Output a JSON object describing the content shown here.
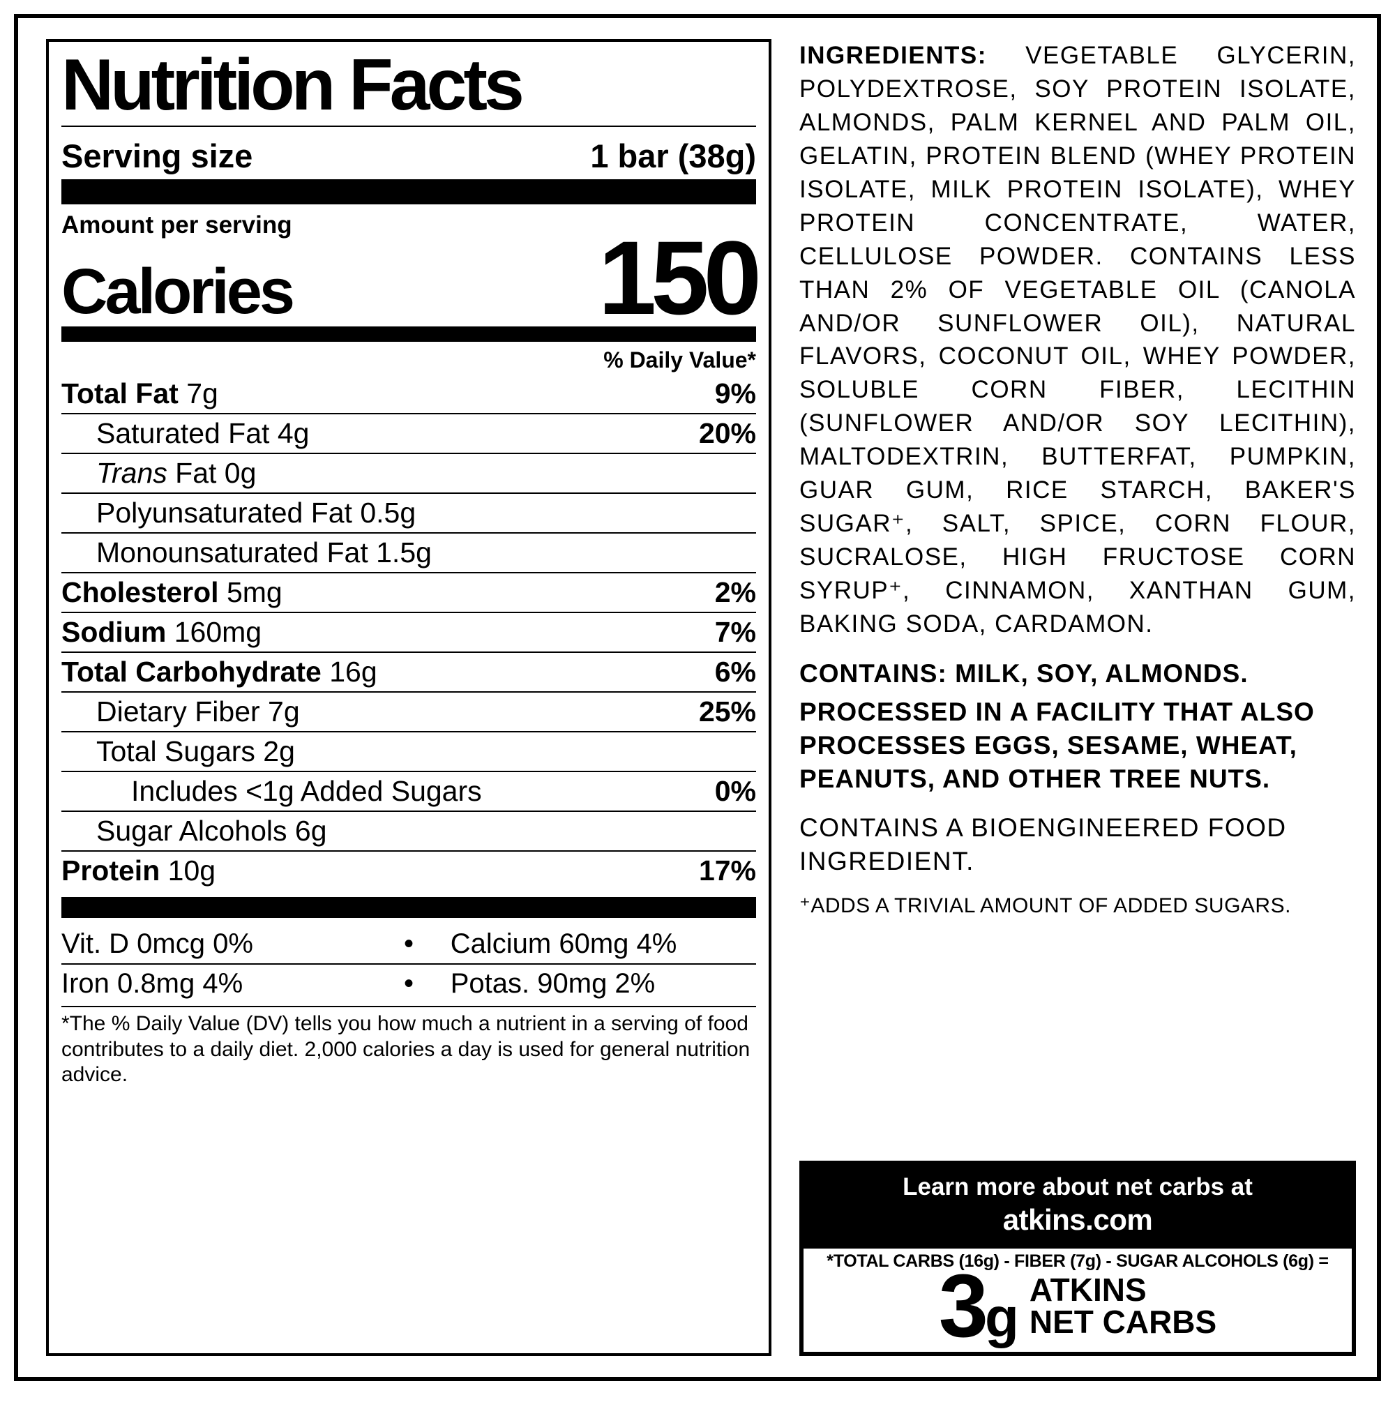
{
  "nf": {
    "title": "Nutrition Facts",
    "serving_label": "Serving size",
    "serving_value": "1 bar (38g)",
    "aps": "Amount per serving",
    "calories_label": "Calories",
    "calories_value": "150",
    "dvhdr": "% Daily Value*",
    "rows": {
      "totalfat_l": "Total Fat",
      "totalfat_v": " 7g",
      "totalfat_dv": "9%",
      "satfat_l": "Saturated Fat 4g",
      "satfat_dv": "20%",
      "transfat_pre": "Trans",
      "transfat_post": " Fat 0g",
      "polyfat": "Polyunsaturated Fat 0.5g",
      "monofat": "Monounsaturated Fat 1.5g",
      "chol_l": "Cholesterol",
      "chol_v": " 5mg",
      "chol_dv": "2%",
      "sod_l": "Sodium",
      "sod_v": " 160mg",
      "sod_dv": "7%",
      "carb_l": "Total Carbohydrate",
      "carb_v": " 16g",
      "carb_dv": "6%",
      "fiber_l": "Dietary Fiber 7g",
      "fiber_dv": "25%",
      "sugars": "Total Sugars 2g",
      "addsug_l": "Includes <1g Added Sugars",
      "addsug_dv": "0%",
      "sugalch": "Sugar Alcohols 6g",
      "prot_l": "Protein",
      "prot_v": " 10g",
      "prot_dv": "17%"
    },
    "vit": {
      "r1c1": "Vit. D 0mcg 0%",
      "r1c2": "Calcium 60mg 4%",
      "r2c1": "Iron 0.8mg 4%",
      "r2c2": "Potas. 90mg 2%"
    },
    "foot": "*The % Daily Value (DV) tells you how much a nutrient in a serving of food contributes to a daily diet. 2,000 calories a day is used for general nutrition advice."
  },
  "right": {
    "ing_label": "INGREDIENTS:",
    "ing_body": " VEGETABLE GLYCERIN, POLYDEXTROSE, SOY PROTEIN ISOLATE, ALMONDS, PALM KERNEL AND PALM OIL, GELATIN, PROTEIN BLEND (WHEY PROTEIN ISOLATE, MILK PROTEIN ISOLATE), WHEY PROTEIN CONCENTRATE, WATER, CELLULOSE POWDER. CONTAINS LESS THAN 2% OF VEGETABLE OIL (CANOLA AND/OR SUNFLOWER OIL), NATURAL FLAVORS, COCONUT OIL, WHEY POWDER, SOLUBLE CORN FIBER, LECITHIN (SUNFLOWER AND/OR SOY LECITHIN), MALTODEXTRIN, BUTTERFAT, PUMPKIN, GUAR GUM, RICE STARCH, BAKER'S SUGAR⁺, SALT, SPICE, CORN FLOUR, SUCRALOSE, HIGH FRUCTOSE CORN SYRUP⁺, CINNAMON, XANTHAN GUM, BAKING SODA, CARDAMON.",
    "contains": "CONTAINS: MILK, SOY, ALMONDS.",
    "processed": "PROCESSED IN A FACILITY THAT ALSO PROCESSES EGGS, SESAME, WHEAT, PEANUTS, AND OTHER TREE NUTS.",
    "bio": "CONTAINS A BIOENGINEERED FOOD INGREDIENT.",
    "trivial": "⁺ADDS A TRIVIAL AMOUNT OF ADDED SUGARS.",
    "net": {
      "learn": "Learn more about net carbs at",
      "site": "atkins.com",
      "formula": "*TOTAL CARBS (16g) - FIBER (7g) - SUGAR ALCOHOLS (6g) =",
      "grams": "3",
      "g": "g",
      "line1": "ATKINS",
      "line2": "NET CARBS"
    }
  },
  "style": {
    "bg": "#ffffff",
    "fg": "#000000",
    "title_fontsize": 104,
    "cal_fontsize": 150,
    "row_fontsize": 41,
    "ing_fontsize": 35
  }
}
